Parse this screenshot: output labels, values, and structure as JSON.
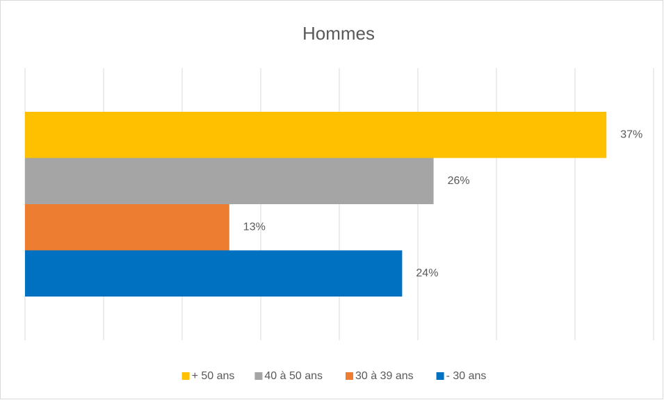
{
  "chart_data": {
    "type": "barh",
    "title": "Hommes",
    "categories": [
      null
    ],
    "series": [
      {
        "name": "+ 50 ans",
        "color": "#FFC000",
        "values": [
          37
        ],
        "value_labels": [
          "37%"
        ]
      },
      {
        "name": "40 à 50 ans",
        "color": "#A5A5A5",
        "values": [
          26
        ],
        "value_labels": [
          "26%"
        ]
      },
      {
        "name": "30 à 39 ans",
        "color": "#ED7D31",
        "values": [
          13
        ],
        "value_labels": [
          "13%"
        ]
      },
      {
        "name": "- 30 ans",
        "color": "#0070C0",
        "values": [
          24
        ],
        "value_labels": [
          "24%"
        ]
      }
    ],
    "xlim": [
      0,
      40
    ],
    "xticks": [
      0,
      5,
      10,
      15,
      20,
      25,
      30,
      35,
      40
    ],
    "grid": true,
    "legend": "bottom"
  }
}
